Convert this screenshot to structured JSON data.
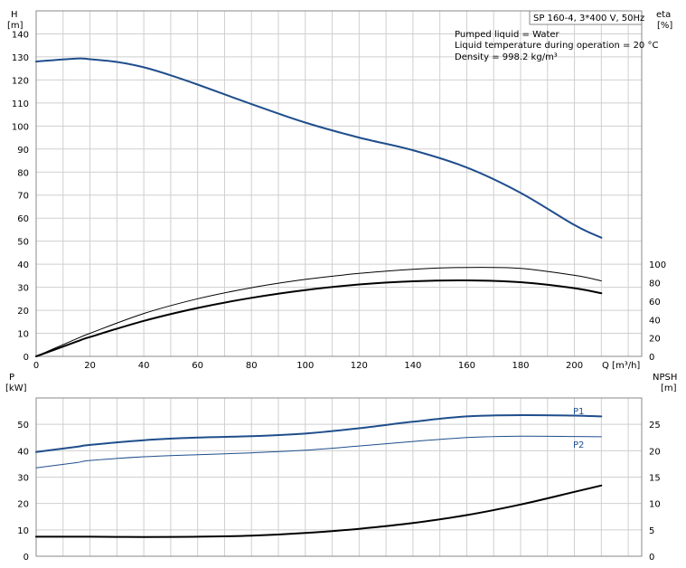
{
  "chart_data": [
    {
      "type": "line",
      "name": "head-efficiency-chart",
      "title": "SP 160-4, 3*400 V, 50Hz",
      "annotations": [
        "Pumped liquid = Water",
        "Liquid temperature during operation = 20 °C",
        "Density = 998.2 kg/m³"
      ],
      "xlabel": "Q [m³/h]",
      "xlim": [
        0,
        225
      ],
      "xticks": [
        0,
        20,
        40,
        60,
        80,
        100,
        120,
        140,
        160,
        180,
        200
      ],
      "ylabel_left": [
        "H",
        "[m]"
      ],
      "ylim_left": [
        0,
        150
      ],
      "yticks_left": [
        0,
        10,
        20,
        30,
        40,
        50,
        60,
        70,
        80,
        90,
        100,
        110,
        120,
        130,
        140
      ],
      "ylabel_right": [
        "eta",
        "[%]"
      ],
      "ylim_right": [
        0,
        375
      ],
      "yticks_right": [
        0,
        20,
        40,
        60,
        80,
        100
      ],
      "grid": true,
      "series": [
        {
          "color": "#1f4e8c",
          "width": 2,
          "x": [
            0,
            15,
            20,
            30,
            40,
            50,
            60,
            80,
            100,
            120,
            140,
            160,
            180,
            200,
            210
          ],
          "y": [
            128,
            129.3,
            129,
            127.8,
            125.5,
            122,
            118,
            109.5,
            101.5,
            95,
            89.5,
            82,
            71,
            57,
            51.5
          ]
        },
        {
          "axis": "right",
          "color": "#000000",
          "width": 1,
          "x": [
            0,
            15,
            20,
            40,
            60,
            80,
            100,
            120,
            140,
            160,
            180,
            200,
            210
          ],
          "y": [
            0,
            19,
            25,
            46.5,
            62.5,
            74.5,
            83.5,
            90,
            94.5,
            96.5,
            95.5,
            88,
            82
          ]
        },
        {
          "axis": "right",
          "color": "#000000",
          "width": 2,
          "x": [
            0,
            15,
            20,
            40,
            60,
            80,
            100,
            120,
            140,
            160,
            180,
            200,
            210
          ],
          "y": [
            0,
            16,
            21,
            38.5,
            52.5,
            63.5,
            72,
            78,
            81.5,
            82.5,
            80.5,
            74,
            68.5
          ]
        }
      ]
    },
    {
      "type": "line",
      "name": "power-npsh-chart",
      "xlim": [
        0,
        225
      ],
      "xticks": [
        0,
        20,
        40,
        60,
        80,
        100,
        120,
        140,
        160,
        180,
        200
      ],
      "ylabel_left": [
        "P",
        "[kW]"
      ],
      "ylim_left": [
        0,
        60
      ],
      "yticks_left": [
        0,
        10,
        20,
        30,
        40,
        50
      ],
      "ylabel_right": [
        "NPSH",
        "[m]"
      ],
      "ylim_right": [
        0,
        30
      ],
      "yticks_right": [
        0,
        5,
        10,
        15,
        20,
        25
      ],
      "grid": true,
      "series": [
        {
          "name": "P1",
          "color": "#1f4e8c",
          "width": 2,
          "x": [
            0,
            15,
            20,
            40,
            60,
            80,
            100,
            120,
            140,
            160,
            180,
            200,
            210
          ],
          "y": [
            39.5,
            41.5,
            42.2,
            44,
            45,
            45.5,
            46.5,
            48.5,
            51,
            53,
            53.5,
            53.3,
            53
          ]
        },
        {
          "name": "P2",
          "color": "#1f4e8c",
          "width": 1,
          "x": [
            0,
            15,
            20,
            40,
            60,
            80,
            100,
            120,
            140,
            160,
            180,
            200,
            210
          ],
          "y": [
            33.5,
            35.5,
            36.3,
            37.7,
            38.5,
            39.2,
            40.2,
            41.8,
            43.5,
            45,
            45.5,
            45.4,
            45.3
          ]
        },
        {
          "axis": "right",
          "color": "#000000",
          "width": 2,
          "x": [
            0,
            15,
            20,
            40,
            60,
            80,
            100,
            120,
            140,
            160,
            180,
            200,
            210
          ],
          "y": [
            3.7,
            3.7,
            3.7,
            3.65,
            3.7,
            3.9,
            4.4,
            5.2,
            6.3,
            7.8,
            9.8,
            12.2,
            13.4
          ]
        }
      ]
    }
  ]
}
